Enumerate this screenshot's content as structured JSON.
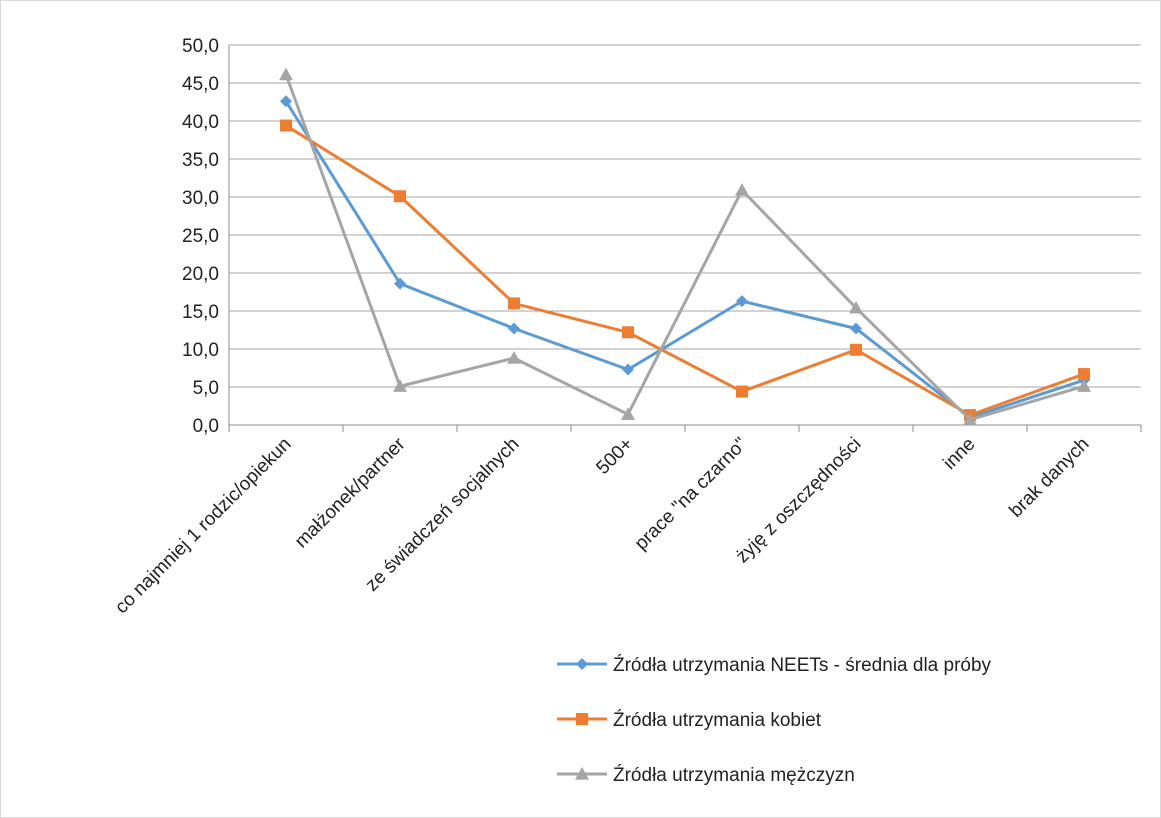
{
  "chart_data": {
    "type": "line",
    "categories": [
      "co najmniej 1 rodzic/opiekun",
      "małżonek/partner",
      "ze świadczeń socjalnych",
      "500+",
      "prace \"na czarno\"",
      "żyję z oszczędności",
      "inne",
      "brak danych"
    ],
    "series": [
      {
        "name": "Źródła utrzymania NEETs - średnia dla próby",
        "color": "#5b9bd5",
        "marker": "diamond",
        "values": [
          42.6,
          18.6,
          12.7,
          7.3,
          16.3,
          12.7,
          1.0,
          5.9
        ]
      },
      {
        "name": "Źródła utrzymania kobiet",
        "color": "#ed7d31",
        "marker": "square",
        "values": [
          39.4,
          30.1,
          16.0,
          12.2,
          4.4,
          9.9,
          1.3,
          6.7
        ]
      },
      {
        "name": "Źródła utrzymania mężczyzn",
        "color": "#a5a5a5",
        "marker": "triangle",
        "values": [
          46.1,
          5.1,
          8.8,
          1.4,
          30.9,
          15.4,
          0.7,
          5.1
        ]
      }
    ],
    "y_ticks": [
      "0,0",
      "5,0",
      "10,0",
      "15,0",
      "20,0",
      "25,0",
      "30,0",
      "35,0",
      "40,0",
      "45,0",
      "50,0"
    ],
    "ylim": [
      0,
      50
    ],
    "grid": true,
    "legend": "bottom-right"
  }
}
